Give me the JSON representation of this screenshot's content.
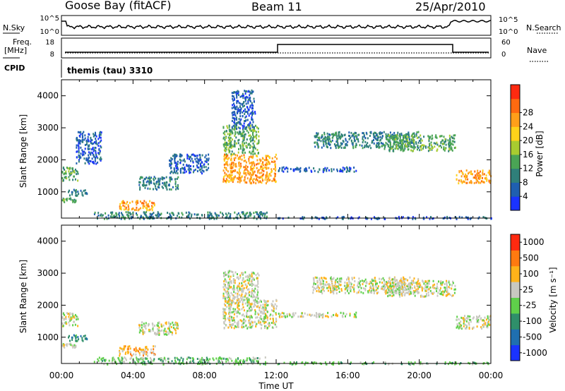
{
  "header": {
    "station": "Goose Bay (fitACF)",
    "beam": "Beam 11",
    "date": "25/Apr/2010"
  },
  "param_panels": {
    "nsky_label": "N.Sky",
    "nsky_ticks": [
      "10^5",
      "10^0"
    ],
    "nsearch_label": "N.Search",
    "nsearch_ticks": [
      "10^5",
      "10^0"
    ],
    "freq_label": "Freq.",
    "freq_unit": "[MHz]",
    "freq_ticks": [
      "18",
      "8"
    ],
    "nave_label": "Nave",
    "nave_ticks": [
      "60",
      "0"
    ],
    "cpid_label": "CPID",
    "cpid_value": "themis (tau) 3310"
  },
  "chart_data": [
    {
      "type": "heatmap",
      "panel": "power",
      "ylabel": "Slant Range [km]",
      "yticks": [
        "1000",
        "2000",
        "3000",
        "4000"
      ],
      "ylim": [
        180,
        4500
      ],
      "xlim_hours": [
        0,
        24
      ],
      "colorbar": {
        "label": "Power [dB]",
        "ticks": [
          "4",
          "8",
          "12",
          "16",
          "20",
          "24",
          "28"
        ],
        "colors": [
          "#1a33ff",
          "#1f5fb0",
          "#2f7f7a",
          "#4aa455",
          "#a8cc30",
          "#ffd21a",
          "#ff9f1a",
          "#ff6a10",
          "#ff2a10"
        ]
      },
      "regions": [
        {
          "t": [
            0.0,
            0.9
          ],
          "r": [
            1350,
            1800
          ],
          "level": 3
        },
        {
          "t": [
            0.3,
            1.4
          ],
          "r": [
            900,
            1100
          ],
          "level": 2
        },
        {
          "t": [
            0.0,
            0.8
          ],
          "r": [
            700,
            850
          ],
          "level": 3
        },
        {
          "t": [
            0.8,
            2.2
          ],
          "r": [
            1900,
            2900
          ],
          "level": 1
        },
        {
          "t": [
            3.2,
            5.2
          ],
          "r": [
            450,
            750
          ],
          "level": 6
        },
        {
          "t": [
            4.3,
            6.5
          ],
          "r": [
            1100,
            1500
          ],
          "level": 2
        },
        {
          "t": [
            6.0,
            8.2
          ],
          "r": [
            1600,
            2200
          ],
          "level": 1
        },
        {
          "t": [
            9.0,
            12.0
          ],
          "r": [
            1300,
            2200
          ],
          "level": 6
        },
        {
          "t": [
            9.0,
            11.0
          ],
          "r": [
            2200,
            3100
          ],
          "level": 3
        },
        {
          "t": [
            9.5,
            10.8
          ],
          "r": [
            3000,
            4200
          ],
          "level": 1
        },
        {
          "t": [
            12.0,
            16.5
          ],
          "r": [
            1650,
            1800
          ],
          "level": 1
        },
        {
          "t": [
            14.0,
            20.0
          ],
          "r": [
            2400,
            2900
          ],
          "level": 2
        },
        {
          "t": [
            18.0,
            22.0
          ],
          "r": [
            2300,
            2800
          ],
          "level": 3
        },
        {
          "t": [
            22.0,
            24.0
          ],
          "r": [
            1300,
            1700
          ],
          "level": 6
        },
        {
          "t": [
            1.8,
            11.5
          ],
          "r": [
            180,
            400
          ],
          "level": 2
        },
        {
          "t": [
            12.0,
            24.0
          ],
          "r": [
            180,
            250
          ],
          "level": 1
        }
      ]
    },
    {
      "type": "heatmap",
      "panel": "velocity",
      "ylabel": "Slant Range [km]",
      "yticks": [
        "1000",
        "2000",
        "3000",
        "4000"
      ],
      "ylim": [
        180,
        4500
      ],
      "xlim_hours": [
        0,
        24
      ],
      "colorbar": {
        "label": "Velocity [m s⁻¹]",
        "ticks": [
          "1000",
          "500",
          "100",
          "25",
          "-25",
          "-100",
          "-500",
          "-1000"
        ],
        "colors": [
          "#1a33ff",
          "#1f6fb0",
          "#2f8f6a",
          "#5fd04a",
          "#c8c8c0",
          "#ffb31a",
          "#ff7a10",
          "#ff2a10"
        ]
      },
      "regions": [
        {
          "t": [
            0.0,
            0.9
          ],
          "r": [
            1350,
            1800
          ],
          "level": 4
        },
        {
          "t": [
            0.3,
            1.4
          ],
          "r": [
            900,
            1100
          ],
          "level": 2
        },
        {
          "t": [
            0.0,
            0.8
          ],
          "r": [
            700,
            850
          ],
          "level": 4
        },
        {
          "t": [
            3.2,
            5.2
          ],
          "r": [
            450,
            750
          ],
          "level": 5
        },
        {
          "t": [
            4.3,
            6.5
          ],
          "r": [
            1100,
            1500
          ],
          "level": 4
        },
        {
          "t": [
            9.0,
            12.0
          ],
          "r": [
            1300,
            2200
          ],
          "level": 4
        },
        {
          "t": [
            9.0,
            11.0
          ],
          "r": [
            2200,
            3100
          ],
          "level": 4
        },
        {
          "t": [
            12.0,
            16.5
          ],
          "r": [
            1650,
            1800
          ],
          "level": 4
        },
        {
          "t": [
            14.0,
            20.0
          ],
          "r": [
            2400,
            2900
          ],
          "level": 4
        },
        {
          "t": [
            18.0,
            22.0
          ],
          "r": [
            2300,
            2800
          ],
          "level": 4
        },
        {
          "t": [
            22.0,
            24.0
          ],
          "r": [
            1300,
            1700
          ],
          "level": 4
        },
        {
          "t": [
            1.8,
            11.5
          ],
          "r": [
            180,
            400
          ],
          "level": 3
        },
        {
          "t": [
            12.0,
            24.0
          ],
          "r": [
            180,
            250
          ],
          "level": 3
        }
      ]
    }
  ],
  "time_axis": {
    "ticks": [
      "00:00",
      "04:00",
      "08:00",
      "12:00",
      "16:00",
      "20:00",
      "00:00"
    ],
    "label": "Time UT"
  }
}
